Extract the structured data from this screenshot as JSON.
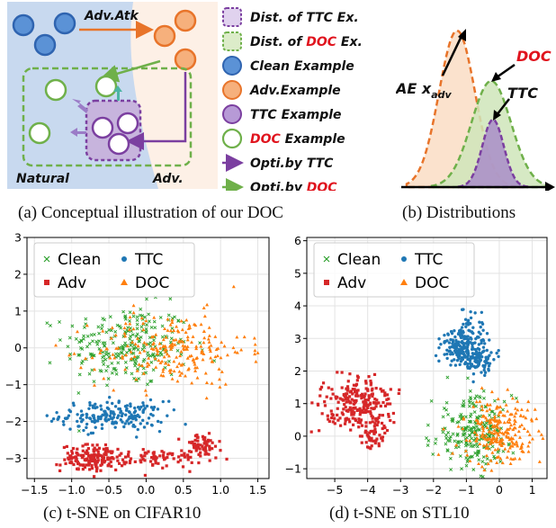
{
  "panel_a": {
    "caption": "(a) Conceptual illustration of our DOC",
    "adv_atk": "Adv.Atk",
    "natural": "Natural",
    "adv": "Adv.",
    "legend": [
      {
        "prefix": "Dist. of ",
        "red": "TTC",
        "suffix": " Ex.",
        "red_is_red": false,
        "kind": "dist-ttc"
      },
      {
        "prefix": "Dist. of ",
        "red": "DOC",
        "suffix": " Ex.",
        "red_is_red": true,
        "kind": "dist-doc"
      },
      {
        "prefix": "Clean Example",
        "red": "",
        "suffix": "",
        "red_is_red": false,
        "kind": "clean"
      },
      {
        "prefix": "Adv.Example",
        "red": "",
        "suffix": "",
        "red_is_red": false,
        "kind": "adv"
      },
      {
        "prefix": "TTC Example",
        "red": "",
        "suffix": "",
        "red_is_red": false,
        "kind": "ttc"
      },
      {
        "prefix": "",
        "red": "DOC",
        "suffix": " Example",
        "red_is_red": true,
        "kind": "doc"
      },
      {
        "prefix": "Opti.by TTC",
        "red": "",
        "suffix": "",
        "red_is_red": false,
        "kind": "opt-ttc"
      },
      {
        "prefix": "Opti.by ",
        "red": "DOC",
        "suffix": "",
        "red_is_red": true,
        "kind": "opt-doc"
      }
    ],
    "colors": {
      "clean": "#4a86cf",
      "adv": "#f4a56a",
      "ttc": "#7b3fa0",
      "doc": "#6fb04a",
      "red": "#e0141e"
    }
  },
  "panel_b": {
    "caption": "(b) Distributions",
    "label_doc": "DOC",
    "label_ttc": "TTC",
    "label_ae": "AE x",
    "label_ae_sub": "adv"
  },
  "chart_data": [
    {
      "type": "scatter",
      "caption": "(c) t-SNE on CIFAR10",
      "xlim": [
        -1.6,
        1.65
      ],
      "ylim": [
        -3.55,
        3.0
      ],
      "xticks": [
        "−1.5",
        "−1.0",
        "−0.5",
        "0.0",
        "0.5",
        "1.0",
        "1.5"
      ],
      "xtick_values": [
        -1.5,
        -1.0,
        -0.5,
        0.0,
        0.5,
        1.0,
        1.5
      ],
      "yticks": [
        "−3",
        "−2",
        "−1",
        "0",
        "1",
        "2",
        "3"
      ],
      "ytick_values": [
        -3,
        -2,
        -1,
        0,
        1,
        2,
        3
      ],
      "grid": true,
      "legend_position": "top-left",
      "series": [
        {
          "name": "Clean",
          "marker": "x",
          "color": "#2ca02c",
          "clusters": [
            {
              "cx": -0.25,
              "cy": 0.05,
              "sx": 0.42,
              "sy": 0.55,
              "n": 260
            }
          ]
        },
        {
          "name": "TTC",
          "marker": "circle",
          "color": "#1f77b4",
          "clusters": [
            {
              "cx": -0.45,
              "cy": -1.85,
              "sx": 0.35,
              "sy": 0.2,
              "n": 190
            }
          ]
        },
        {
          "name": "Adv",
          "marker": "square",
          "color": "#d62728",
          "clusters": [
            {
              "cx": -0.7,
              "cy": -3.0,
              "sx": 0.22,
              "sy": 0.18,
              "n": 160
            },
            {
              "cx": 0.15,
              "cy": -3.0,
              "sx": 0.32,
              "sy": 0.12,
              "n": 80
            },
            {
              "cx": 0.75,
              "cy": -2.65,
              "sx": 0.13,
              "sy": 0.15,
              "n": 60
            }
          ]
        },
        {
          "name": "DOC",
          "marker": "triangle",
          "color": "#ff7f0e",
          "clusters": [
            {
              "cx": 0.35,
              "cy": -0.05,
              "sx": 0.5,
              "sy": 0.5,
              "n": 240
            }
          ]
        }
      ]
    },
    {
      "type": "scatter",
      "caption": "(d) t-SNE on STL10",
      "xlim": [
        -5.85,
        1.45
      ],
      "ylim": [
        -1.3,
        6.1
      ],
      "xticks": [
        "−5",
        "−4",
        "−3",
        "−2",
        "−1",
        "0",
        "1"
      ],
      "xtick_values": [
        -5,
        -4,
        -3,
        -2,
        -1,
        0,
        1
      ],
      "yticks": [
        "−1",
        "0",
        "1",
        "2",
        "3",
        "4",
        "5",
        "6"
      ],
      "ytick_values": [
        -1,
        0,
        1,
        2,
        3,
        4,
        5,
        6
      ],
      "grid": true,
      "legend_position": "top-left",
      "series": [
        {
          "name": "Clean",
          "marker": "x",
          "color": "#2ca02c",
          "clusters": [
            {
              "cx": -0.8,
              "cy": 0.1,
              "sx": 0.6,
              "sy": 0.55,
              "n": 230
            }
          ]
        },
        {
          "name": "TTC",
          "marker": "circle",
          "color": "#1f77b4",
          "clusters": [
            {
              "cx": -1.2,
              "cy": 2.7,
              "sx": 0.28,
              "sy": 0.25,
              "n": 150
            },
            {
              "cx": -0.55,
              "cy": 2.3,
              "sx": 0.2,
              "sy": 0.22,
              "n": 80
            },
            {
              "cx": -0.8,
              "cy": 3.2,
              "sx": 0.28,
              "sy": 0.35,
              "n": 60
            }
          ]
        },
        {
          "name": "Adv",
          "marker": "square",
          "color": "#d62728",
          "clusters": [
            {
              "cx": -4.3,
              "cy": 1.0,
              "sx": 0.55,
              "sy": 0.4,
              "n": 230
            },
            {
              "cx": -3.8,
              "cy": 0.0,
              "sx": 0.2,
              "sy": 0.25,
              "n": 50
            }
          ]
        },
        {
          "name": "DOC",
          "marker": "triangle",
          "color": "#ff7f0e",
          "clusters": [
            {
              "cx": 0.0,
              "cy": 0.15,
              "sx": 0.55,
              "sy": 0.5,
              "n": 230
            }
          ]
        }
      ]
    }
  ]
}
